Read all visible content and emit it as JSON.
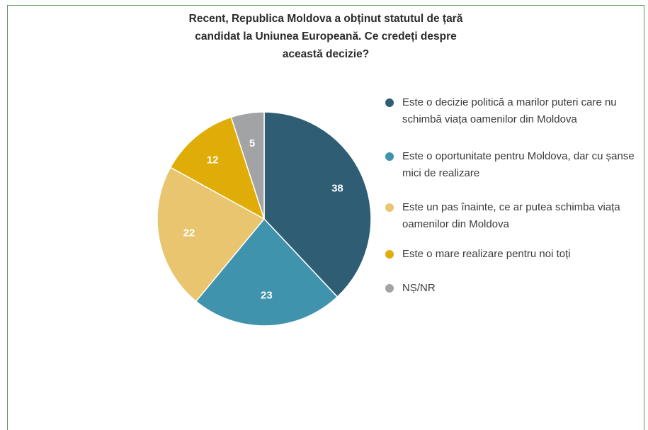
{
  "chart_data": {
    "type": "pie",
    "title": "Recent, Republica Moldova a obținut statutul de țară\ncandidat la Uniunea Europeană. Ce credeți despre\naceastă decizie?",
    "start": "12 o'clock, clockwise",
    "slices": [
      {
        "name": "Este o decizie politică a marilor puteri care nu schimbă viața oamenilor din Moldova",
        "value": 38,
        "color": "#2e5d74"
      },
      {
        "name": "Este o oportunitate pentru Moldova, dar cu șanse mici de realizare",
        "value": 23,
        "color": "#3f93ad"
      },
      {
        "name": "Este un pas înainte, ce ar putea schimba viața oamenilor din Moldova",
        "value": 22,
        "color": "#e8c56e"
      },
      {
        "name": "Este o mare realizare pentru noi toți",
        "value": 12,
        "color": "#e0ad08"
      },
      {
        "name": "NȘ/NR",
        "value": 5,
        "color": "#a2a3a5"
      }
    ],
    "legend": "right"
  }
}
